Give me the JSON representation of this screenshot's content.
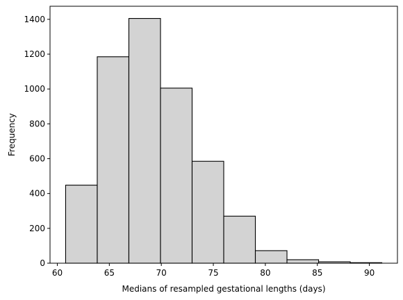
{
  "chart_data": {
    "type": "bar",
    "title": "",
    "xlabel": "Medians of resampled gestational lengths (days)",
    "ylabel": "Frequency",
    "bin_edges": [
      60.8,
      63.84,
      66.88,
      69.92,
      72.96,
      76.0,
      79.04,
      82.08,
      85.12,
      88.16,
      91.2
    ],
    "values": [
      448,
      1185,
      1405,
      1005,
      585,
      270,
      72,
      20,
      8,
      3
    ],
    "xlim": [
      59.3,
      92.7
    ],
    "ylim": [
      0,
      1475
    ],
    "xticks": [
      60,
      65,
      70,
      75,
      80,
      85,
      90
    ],
    "yticks": [
      0,
      200,
      400,
      600,
      800,
      1000,
      1200,
      1400
    ],
    "xtick_labels": [
      "60",
      "65",
      "70",
      "75",
      "80",
      "85",
      "90"
    ],
    "ytick_labels": [
      "0",
      "200",
      "400",
      "600",
      "800",
      "1000",
      "1200",
      "1400"
    ],
    "grid": false,
    "bar_fill": "#d3d3d3",
    "bar_edge": "#000000"
  }
}
